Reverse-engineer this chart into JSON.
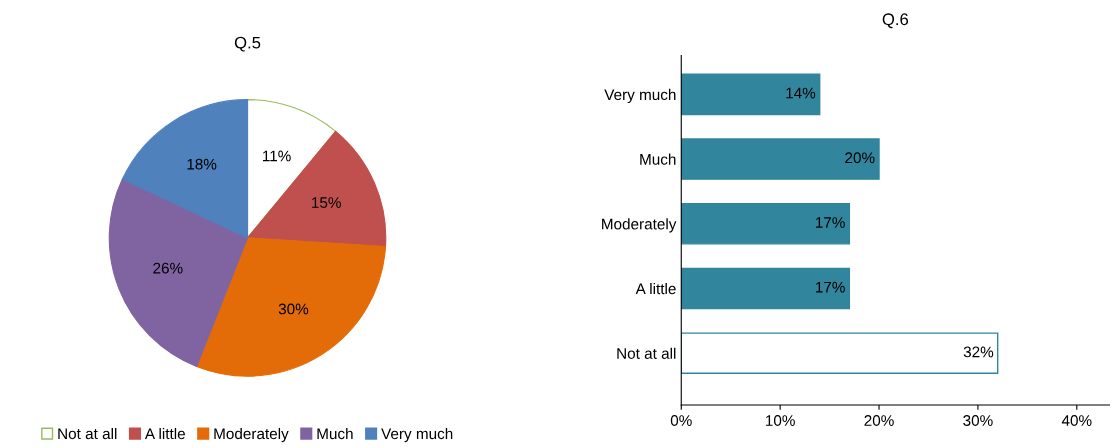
{
  "chart_data": [
    {
      "type": "pie",
      "title": "Q.5",
      "categories": [
        "Not at all",
        "A little",
        "Moderately",
        "Much",
        "Very much"
      ],
      "values": [
        11,
        15,
        30,
        26,
        18
      ],
      "colors": [
        "#ffffff",
        "#c0504d",
        "#e36c09",
        "#8064a2",
        "#4f81bd"
      ],
      "value_labels": [
        "11%",
        "15%",
        "30%",
        "26%",
        "18%"
      ],
      "legend": "bottom"
    },
    {
      "type": "bar",
      "orientation": "horizontal",
      "title": "Q.6",
      "categories": [
        "Very much",
        "Much",
        "Moderately",
        "A little",
        "Not at all"
      ],
      "values": [
        14,
        20,
        17,
        17,
        32
      ],
      "color": "#31859c",
      "colors": [
        "#31859c",
        "#31859c",
        "#31859c",
        "#31859c",
        "#ffffff"
      ],
      "value_labels": [
        "14%",
        "20%",
        "17%",
        "17%",
        "32%"
      ],
      "xlim": [
        0,
        43.3
      ],
      "xticks": [
        {
          "value": 0,
          "label": "0%"
        },
        {
          "value": 10,
          "label": "10%"
        },
        {
          "value": 20,
          "label": "20%"
        },
        {
          "value": 30,
          "label": "30%"
        },
        {
          "value": 40,
          "label": "40%"
        }
      ],
      "grid": false
    }
  ]
}
